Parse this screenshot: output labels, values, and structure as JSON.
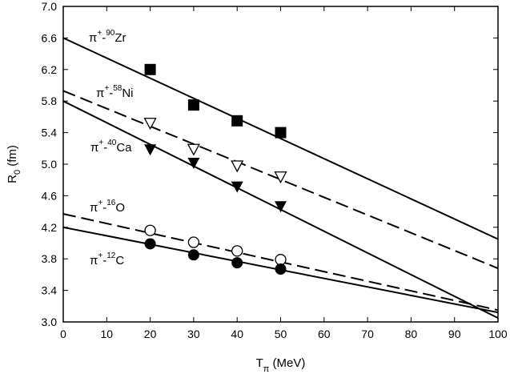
{
  "chart_data": {
    "type": "scatter",
    "title": "",
    "xlabel": {
      "main": "T",
      "sub": "π",
      "unit": " (MeV)"
    },
    "ylabel": {
      "main": "R",
      "sub": "0",
      "unit": " (fm)"
    },
    "xlim": [
      0,
      100
    ],
    "ylim": [
      3.0,
      7.0
    ],
    "x_ticks": [
      0,
      10,
      20,
      30,
      40,
      50,
      60,
      70,
      80,
      90,
      100
    ],
    "y_ticks": [
      3.0,
      3.4,
      3.8,
      4.2,
      4.6,
      5.0,
      5.4,
      5.8,
      6.2,
      6.6,
      7.0
    ],
    "grid": false,
    "series": [
      {
        "name": {
          "base": "π",
          "charge": "+",
          "dash": "-",
          "mass": "90",
          "element": "Zr"
        },
        "marker": "filled-square",
        "line_style": "solid",
        "fit_line": [
          [
            0,
            6.6
          ],
          [
            100,
            4.05
          ]
        ],
        "points": [
          [
            20,
            6.2
          ],
          [
            30,
            5.75
          ],
          [
            40,
            5.55
          ],
          [
            50,
            5.4
          ]
        ]
      },
      {
        "name": {
          "base": "π",
          "charge": "+",
          "dash": "-",
          "mass": "58",
          "element": "Ni"
        },
        "marker": "open-triangle-down",
        "line_style": "dashed",
        "fit_line": [
          [
            0,
            5.93
          ],
          [
            100,
            3.68
          ]
        ],
        "points": [
          [
            20,
            5.52
          ],
          [
            30,
            5.19
          ],
          [
            40,
            4.98
          ],
          [
            50,
            4.84
          ]
        ]
      },
      {
        "name": {
          "base": "π",
          "charge": "+",
          "dash": "-",
          "mass": "40",
          "element": "Ca"
        },
        "marker": "filled-triangle-down",
        "line_style": "solid",
        "fit_line": [
          [
            0,
            5.8
          ],
          [
            100,
            3.05
          ]
        ],
        "points": [
          [
            20,
            5.19
          ],
          [
            30,
            5.02
          ],
          [
            40,
            4.72
          ],
          [
            50,
            4.47
          ]
        ]
      },
      {
        "name": {
          "base": "π",
          "charge": "+",
          "dash": "-",
          "mass": "16",
          "element": "O"
        },
        "marker": "open-circle",
        "line_style": "dashed",
        "fit_line": [
          [
            0,
            4.37
          ],
          [
            100,
            3.15
          ]
        ],
        "points": [
          [
            20,
            4.16
          ],
          [
            30,
            4.01
          ],
          [
            40,
            3.9
          ],
          [
            50,
            3.79
          ]
        ]
      },
      {
        "name": {
          "base": "π",
          "charge": "+",
          "dash": "-",
          "mass": "12",
          "element": "C"
        },
        "marker": "filled-circle",
        "line_style": "solid",
        "fit_line": [
          [
            0,
            4.2
          ],
          [
            100,
            3.12
          ]
        ],
        "points": [
          [
            20,
            3.99
          ],
          [
            30,
            3.85
          ],
          [
            40,
            3.75
          ],
          [
            50,
            3.67
          ]
        ]
      }
    ]
  }
}
